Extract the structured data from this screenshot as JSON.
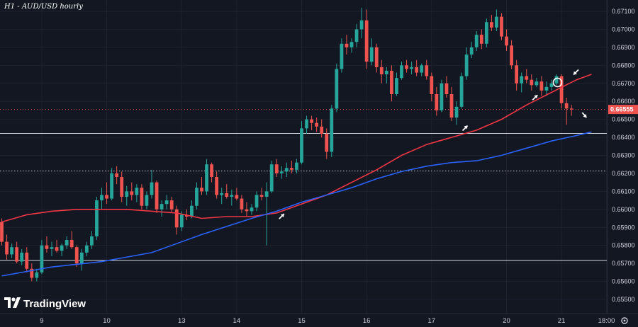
{
  "header": {
    "title": "H1 - AUD/USD hourly"
  },
  "brand": {
    "name": "TradingView"
  },
  "colors": {
    "up": "#26a69a",
    "down": "#ef5350",
    "ma_fast": "#f23645",
    "ma_slow": "#2962ff",
    "background": "#131722"
  },
  "icons": {
    "settings": "gear-icon",
    "logo": "tradingview-logo-icon"
  },
  "chart_data": {
    "type": "candlestick",
    "title": "H1 - AUD/USD hourly",
    "ylim": [
      0.6552,
      0.6713
    ],
    "y_ticks": [
      0.671,
      0.67,
      0.669,
      0.668,
      0.667,
      0.666,
      0.665,
      0.664,
      0.663,
      0.662,
      0.661,
      0.66,
      0.659,
      0.658,
      0.657,
      0.656,
      0.655
    ],
    "y_tick_labels": [
      "0.67100",
      "0.67000",
      "0.66900",
      "0.66800",
      "0.66700",
      "0.66600",
      "0.66500",
      "0.66400",
      "0.66300",
      "0.66200",
      "0.66100",
      "0.66000",
      "0.65900",
      "0.65800",
      "0.65700",
      "0.65600",
      "0.65500"
    ],
    "x_ticks": [
      {
        "label": "9",
        "index": 8
      },
      {
        "label": "10",
        "index": 21
      },
      {
        "label": "13",
        "index": 36
      },
      {
        "label": "14",
        "index": 47
      },
      {
        "label": "15",
        "index": 60
      },
      {
        "label": "16",
        "index": 73
      },
      {
        "label": "17",
        "index": 86
      },
      {
        "label": "20",
        "index": 101
      },
      {
        "label": "21",
        "index": 112
      },
      {
        "label": "18:00",
        "index": 121
      }
    ],
    "last_price": "0.66555",
    "current_price_line": 0.66555,
    "horizontal_lines": [
      {
        "value": 0.66422,
        "style": "solid"
      },
      {
        "value": 0.66213,
        "style": "dotted"
      },
      {
        "value": 0.65716,
        "style": "solid"
      }
    ],
    "series": [
      {
        "type": "moving_average",
        "color": "#f23645",
        "points": [
          [
            0,
            0.6593
          ],
          [
            5,
            0.6597
          ],
          [
            10,
            0.6599
          ],
          [
            15,
            0.66
          ],
          [
            20,
            0.66
          ],
          [
            25,
            0.66
          ],
          [
            30,
            0.6599
          ],
          [
            35,
            0.6598
          ],
          [
            40,
            0.6595
          ],
          [
            45,
            0.6596
          ],
          [
            50,
            0.6596
          ],
          [
            55,
            0.6598
          ],
          [
            60,
            0.6603
          ],
          [
            65,
            0.6608
          ],
          [
            70,
            0.6615
          ],
          [
            75,
            0.6622
          ],
          [
            80,
            0.663
          ],
          [
            85,
            0.6636
          ],
          [
            90,
            0.664
          ],
          [
            95,
            0.6644
          ],
          [
            100,
            0.665
          ],
          [
            105,
            0.6658
          ],
          [
            110,
            0.6665
          ],
          [
            115,
            0.6672
          ],
          [
            118,
            0.6675
          ]
        ]
      },
      {
        "type": "moving_average",
        "color": "#2962ff",
        "points": [
          [
            0,
            0.6563
          ],
          [
            10,
            0.6568
          ],
          [
            20,
            0.6571
          ],
          [
            30,
            0.6576
          ],
          [
            40,
            0.6586
          ],
          [
            50,
            0.6595
          ],
          [
            55,
            0.6599
          ],
          [
            60,
            0.6604
          ],
          [
            65,
            0.6608
          ],
          [
            70,
            0.6612
          ],
          [
            75,
            0.6617
          ],
          [
            80,
            0.6621
          ],
          [
            85,
            0.6624
          ],
          [
            90,
            0.6626
          ],
          [
            95,
            0.6627
          ],
          [
            100,
            0.663
          ],
          [
            105,
            0.6634
          ],
          [
            110,
            0.6638
          ],
          [
            115,
            0.6641
          ],
          [
            118,
            0.6643
          ]
        ]
      }
    ],
    "candles": [
      [
        0.6593,
        0.6595,
        0.658,
        0.6582
      ],
      [
        0.6582,
        0.6586,
        0.6572,
        0.6575
      ],
      [
        0.6575,
        0.6581,
        0.6573,
        0.6579
      ],
      [
        0.6579,
        0.6582,
        0.657,
        0.6571
      ],
      [
        0.6571,
        0.6578,
        0.6569,
        0.6576
      ],
      [
        0.6576,
        0.6579,
        0.6565,
        0.6567
      ],
      [
        0.6567,
        0.657,
        0.656,
        0.6562
      ],
      [
        0.6562,
        0.6567,
        0.656,
        0.6565
      ],
      [
        0.6565,
        0.6583,
        0.6564,
        0.658
      ],
      [
        0.658,
        0.6585,
        0.6576,
        0.6578
      ],
      [
        0.6578,
        0.6582,
        0.6574,
        0.6579
      ],
      [
        0.6579,
        0.6583,
        0.6576,
        0.6577
      ],
      [
        0.6577,
        0.6581,
        0.6574,
        0.658
      ],
      [
        0.658,
        0.6585,
        0.6578,
        0.6583
      ],
      [
        0.6583,
        0.6588,
        0.6578,
        0.6579
      ],
      [
        0.6579,
        0.658,
        0.6568,
        0.657
      ],
      [
        0.657,
        0.6578,
        0.6566,
        0.6576
      ],
      [
        0.6576,
        0.6582,
        0.6574,
        0.658
      ],
      [
        0.658,
        0.6588,
        0.6578,
        0.6585
      ],
      [
        0.6585,
        0.6607,
        0.6583,
        0.6605
      ],
      [
        0.6605,
        0.6612,
        0.66,
        0.6608
      ],
      [
        0.6608,
        0.6615,
        0.6603,
        0.6606
      ],
      [
        0.6606,
        0.6623,
        0.6605,
        0.662
      ],
      [
        0.662,
        0.6624,
        0.6614,
        0.6618
      ],
      [
        0.6618,
        0.6621,
        0.6604,
        0.6607
      ],
      [
        0.6607,
        0.6613,
        0.6602,
        0.661
      ],
      [
        0.661,
        0.6615,
        0.6605,
        0.6608
      ],
      [
        0.6608,
        0.6614,
        0.6604,
        0.6612
      ],
      [
        0.6612,
        0.6614,
        0.66,
        0.6602
      ],
      [
        0.6602,
        0.661,
        0.66,
        0.6608
      ],
      [
        0.6608,
        0.6622,
        0.6606,
        0.6615
      ],
      [
        0.6615,
        0.6616,
        0.6598,
        0.66
      ],
      [
        0.66,
        0.6605,
        0.6596,
        0.6603
      ],
      [
        0.6603,
        0.6608,
        0.66,
        0.6605
      ],
      [
        0.6605,
        0.6607,
        0.6598,
        0.66
      ],
      [
        0.66,
        0.6602,
        0.6586,
        0.659
      ],
      [
        0.659,
        0.6599,
        0.6588,
        0.6597
      ],
      [
        0.6597,
        0.66,
        0.6594,
        0.6596
      ],
      [
        0.6596,
        0.6605,
        0.6595,
        0.6602
      ],
      [
        0.6602,
        0.6615,
        0.66,
        0.6612
      ],
      [
        0.6612,
        0.6618,
        0.6608,
        0.661
      ],
      [
        0.661,
        0.6628,
        0.6608,
        0.6625
      ],
      [
        0.6625,
        0.6626,
        0.6615,
        0.6618
      ],
      [
        0.6618,
        0.6621,
        0.6606,
        0.6608
      ],
      [
        0.6608,
        0.6612,
        0.6603,
        0.6609
      ],
      [
        0.6609,
        0.6614,
        0.6606,
        0.6607
      ],
      [
        0.6607,
        0.6611,
        0.6602,
        0.6608
      ],
      [
        0.6608,
        0.6612,
        0.6605,
        0.6606
      ],
      [
        0.6606,
        0.6608,
        0.6598,
        0.66
      ],
      [
        0.66,
        0.6604,
        0.6596,
        0.6599
      ],
      [
        0.6599,
        0.6603,
        0.6597,
        0.6601
      ],
      [
        0.6601,
        0.661,
        0.6599,
        0.6608
      ],
      [
        0.6608,
        0.6612,
        0.6605,
        0.6607
      ],
      [
        0.6607,
        0.6615,
        0.658,
        0.661
      ],
      [
        0.661,
        0.6627,
        0.6609,
        0.6625
      ],
      [
        0.6625,
        0.6628,
        0.6618,
        0.662
      ],
      [
        0.662,
        0.6624,
        0.6617,
        0.6621
      ],
      [
        0.6621,
        0.6626,
        0.6618,
        0.6623
      ],
      [
        0.6623,
        0.6627,
        0.662,
        0.6622
      ],
      [
        0.6622,
        0.6628,
        0.662,
        0.6626
      ],
      [
        0.6626,
        0.6649,
        0.6625,
        0.6645
      ],
      [
        0.6645,
        0.6652,
        0.6642,
        0.665
      ],
      [
        0.665,
        0.6652,
        0.6644,
        0.6648
      ],
      [
        0.6648,
        0.6651,
        0.6643,
        0.6646
      ],
      [
        0.6646,
        0.665,
        0.664,
        0.6642
      ],
      [
        0.6642,
        0.6645,
        0.6628,
        0.6632
      ],
      [
        0.6632,
        0.6658,
        0.6629,
        0.6656
      ],
      [
        0.6656,
        0.6681,
        0.6654,
        0.6678
      ],
      [
        0.6678,
        0.6695,
        0.6676,
        0.6692
      ],
      [
        0.6692,
        0.6697,
        0.6686,
        0.669
      ],
      [
        0.669,
        0.6695,
        0.6687,
        0.6693
      ],
      [
        0.6693,
        0.6703,
        0.669,
        0.67
      ],
      [
        0.67,
        0.6712,
        0.6695,
        0.6705
      ],
      [
        0.6705,
        0.6711,
        0.6678,
        0.6682
      ],
      [
        0.6682,
        0.6695,
        0.668,
        0.669
      ],
      [
        0.669,
        0.6692,
        0.6676,
        0.6679
      ],
      [
        0.6679,
        0.6683,
        0.667,
        0.6675
      ],
      [
        0.6675,
        0.6679,
        0.667,
        0.6677
      ],
      [
        0.6677,
        0.668,
        0.666,
        0.6664
      ],
      [
        0.6664,
        0.6676,
        0.6663,
        0.6673
      ],
      [
        0.6673,
        0.6682,
        0.6672,
        0.668
      ],
      [
        0.668,
        0.6683,
        0.6676,
        0.6678
      ],
      [
        0.6678,
        0.6682,
        0.6675,
        0.6679
      ],
      [
        0.6679,
        0.6683,
        0.6674,
        0.6676
      ],
      [
        0.6676,
        0.6681,
        0.6674,
        0.668
      ],
      [
        0.668,
        0.6683,
        0.6672,
        0.6674
      ],
      [
        0.6674,
        0.6676,
        0.666,
        0.6664
      ],
      [
        0.6664,
        0.6668,
        0.6652,
        0.6655
      ],
      [
        0.6655,
        0.6672,
        0.6654,
        0.667
      ],
      [
        0.667,
        0.6674,
        0.6662,
        0.6664
      ],
      [
        0.6664,
        0.6668,
        0.6649,
        0.6651
      ],
      [
        0.6651,
        0.666,
        0.6647,
        0.6657
      ],
      [
        0.6657,
        0.6676,
        0.6656,
        0.6674
      ],
      [
        0.6674,
        0.669,
        0.6672,
        0.6686
      ],
      [
        0.6686,
        0.6693,
        0.6684,
        0.669
      ],
      [
        0.669,
        0.6699,
        0.6688,
        0.6697
      ],
      [
        0.6697,
        0.67,
        0.6689,
        0.6692
      ],
      [
        0.6692,
        0.6706,
        0.669,
        0.6704
      ],
      [
        0.6704,
        0.6708,
        0.6699,
        0.6701
      ],
      [
        0.6701,
        0.6711,
        0.6699,
        0.6707
      ],
      [
        0.6707,
        0.6709,
        0.6694,
        0.6696
      ],
      [
        0.6696,
        0.67,
        0.6688,
        0.6691
      ],
      [
        0.6691,
        0.6694,
        0.6678,
        0.668
      ],
      [
        0.668,
        0.6683,
        0.6666,
        0.667
      ],
      [
        0.667,
        0.6676,
        0.6665,
        0.6674
      ],
      [
        0.6674,
        0.6678,
        0.667,
        0.6672
      ],
      [
        0.6672,
        0.6675,
        0.6666,
        0.6669
      ],
      [
        0.6669,
        0.6673,
        0.6668,
        0.6671
      ],
      [
        0.6671,
        0.6674,
        0.6663,
        0.6666
      ],
      [
        0.6666,
        0.6671,
        0.6663,
        0.6668
      ],
      [
        0.6668,
        0.6672,
        0.6666,
        0.667
      ],
      [
        0.667,
        0.6675,
        0.6669,
        0.6674
      ],
      [
        0.6674,
        0.6675,
        0.6656,
        0.6659
      ],
      [
        0.6659,
        0.6662,
        0.6647,
        0.6656
      ],
      [
        0.6656,
        0.6658,
        0.6652,
        0.66555
      ]
    ]
  }
}
